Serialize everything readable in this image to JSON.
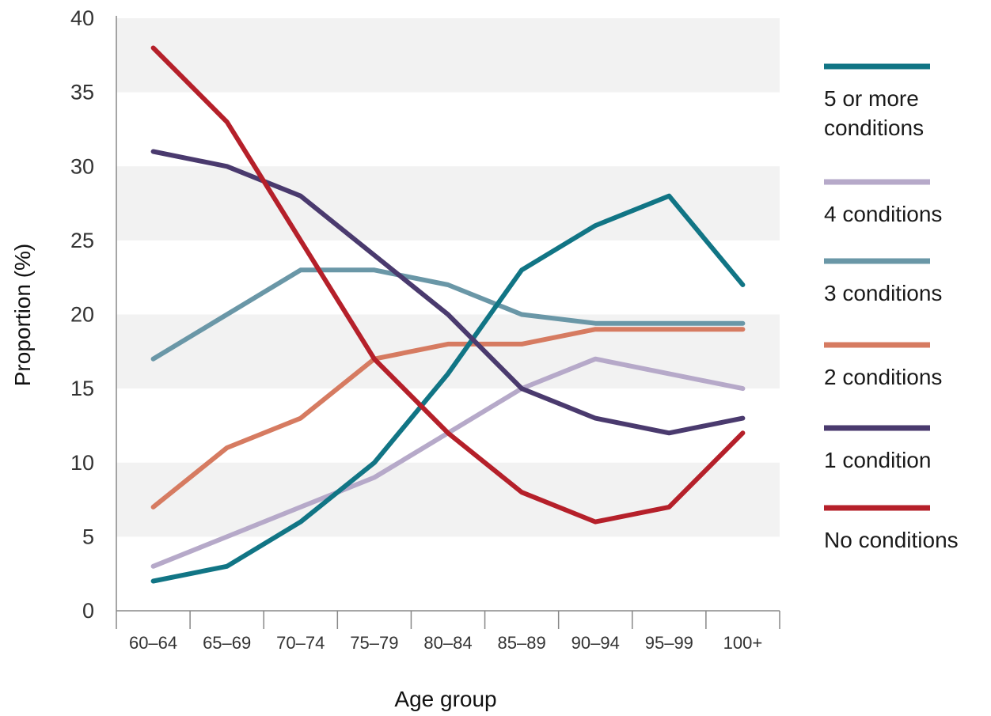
{
  "chart_data": {
    "type": "line",
    "title": "",
    "xlabel": "Age group",
    "ylabel": "Proportion (%)",
    "ylim": [
      0,
      40
    ],
    "yticks": [
      0,
      5,
      10,
      15,
      20,
      25,
      30,
      35,
      40
    ],
    "grid": "alternating horizontal bands",
    "legend_position": "right",
    "categories": [
      "60–64",
      "65–69",
      "70–74",
      "75–79",
      "80–84",
      "85–89",
      "90–94",
      "95–99",
      "100+"
    ],
    "series": [
      {
        "name": "5 or more conditions",
        "color": "#117585",
        "legend_lines": [
          "5 or more",
          "conditions"
        ],
        "values": [
          2,
          3,
          6,
          10,
          16,
          23,
          26,
          28,
          22
        ]
      },
      {
        "name": "4 conditions",
        "color": "#b6a9c9",
        "legend_lines": [
          "4 conditions"
        ],
        "values": [
          3,
          5,
          7,
          9,
          12,
          15,
          17,
          16,
          15
        ]
      },
      {
        "name": "3 conditions",
        "color": "#6a97a7",
        "legend_lines": [
          "3 conditions"
        ],
        "values": [
          17,
          20,
          23,
          23,
          22,
          20,
          19.4,
          19.4,
          19.4
        ]
      },
      {
        "name": "2 conditions",
        "color": "#d67b61",
        "legend_lines": [
          "2 conditions"
        ],
        "values": [
          7,
          11,
          13,
          17,
          18,
          18,
          19,
          19,
          19
        ]
      },
      {
        "name": "1 condition",
        "color": "#4a3a6e",
        "legend_lines": [
          "1 condition"
        ],
        "values": [
          31,
          30,
          28,
          24,
          20,
          15,
          13,
          12,
          13
        ]
      },
      {
        "name": "No conditions",
        "color": "#b5202a",
        "legend_lines": [
          "No conditions"
        ],
        "values": [
          38,
          33,
          25,
          17,
          12,
          8,
          6,
          7,
          12
        ]
      }
    ]
  }
}
